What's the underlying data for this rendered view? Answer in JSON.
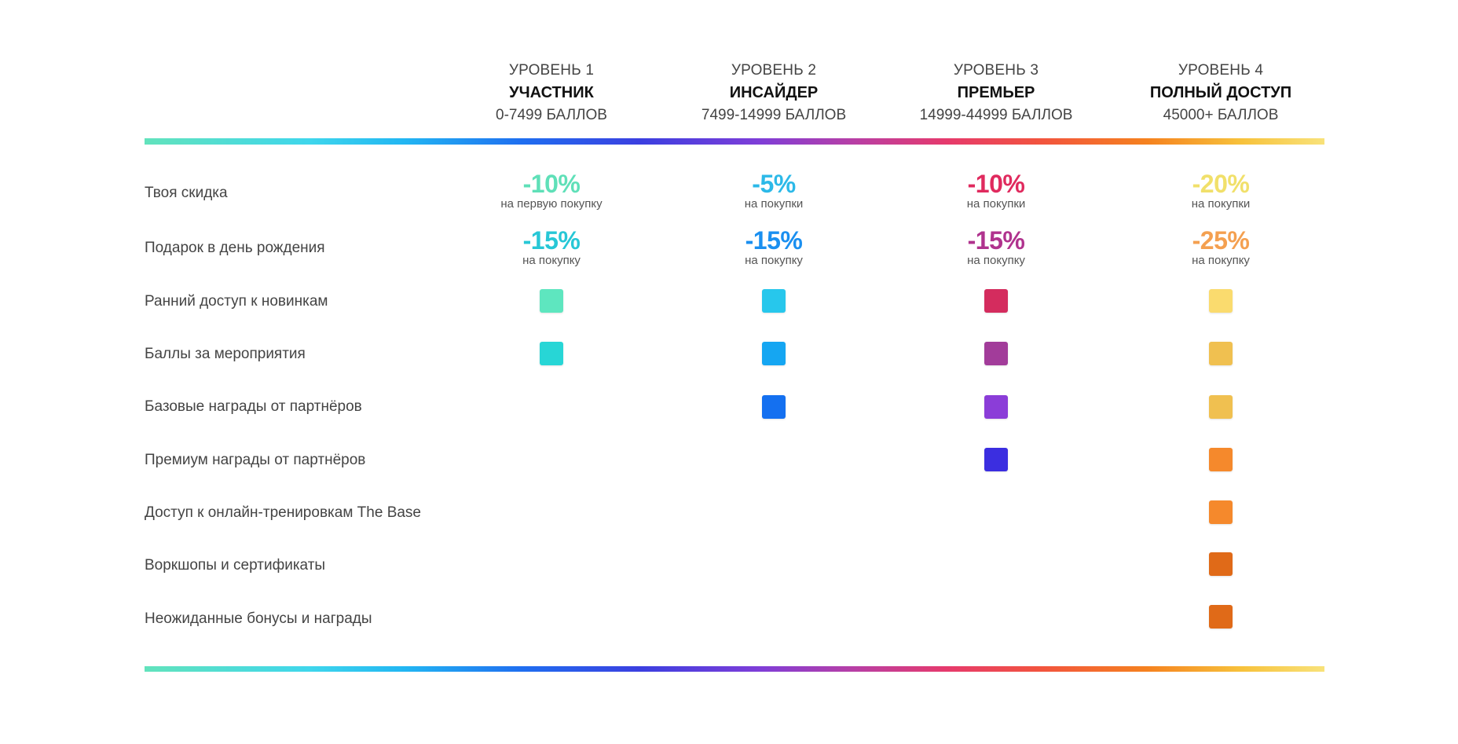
{
  "tiers": [
    {
      "level": "УРОВЕНЬ 1",
      "name": "УЧАСТНИК",
      "range": "0-7499 БАЛЛОВ"
    },
    {
      "level": "УРОВЕНЬ 2",
      "name": "ИНСАЙДЕР",
      "range": "7499-14999 БАЛЛОВ"
    },
    {
      "level": "УРОВЕНЬ 3",
      "name": "ПРЕМЬЕР",
      "range": "14999-44999 БАЛЛОВ"
    },
    {
      "level": "УРОВЕНЬ 4",
      "name": "ПОЛНЫЙ ДОСТУП",
      "range": "45000+ БАЛЛОВ"
    }
  ],
  "rows": [
    {
      "label": "Твоя скидка"
    },
    {
      "label": "Подарок в день рождения"
    },
    {
      "label": "Ранний доступ к новинкам"
    },
    {
      "label": "Баллы за мероприятия"
    },
    {
      "label": "Базовые награды от партнёров"
    },
    {
      "label": "Премиум награды от партнёров"
    },
    {
      "label": "Доступ к онлайн-тренировкам The Base"
    },
    {
      "label": "Воркшопы и сертификаты"
    },
    {
      "label": "Неожиданные бонусы и награды"
    }
  ],
  "discount": [
    {
      "value": "-10%",
      "note": "на первую покупку",
      "color": "#5fe0b8"
    },
    {
      "value": "-5%",
      "note": "на покупки",
      "color": "#2cb9e8"
    },
    {
      "value": "-10%",
      "note": "на покупки",
      "color": "#e02a5e"
    },
    {
      "value": "-20%",
      "note": "на покупки",
      "color": "#f1e06a"
    }
  ],
  "birthday": [
    {
      "value": "-15%",
      "note": "на покупку",
      "color": "#27c7d6"
    },
    {
      "value": "-15%",
      "note": "на покупку",
      "color": "#1a8ff0"
    },
    {
      "value": "-15%",
      "note": "на покупку",
      "color": "#b0338e"
    },
    {
      "value": "-25%",
      "note": "на покупку",
      "color": "#f4a050"
    }
  ],
  "squares": [
    {
      "row": 2,
      "tier": 0,
      "color": "#5ee6bf"
    },
    {
      "row": 2,
      "tier": 1,
      "color": "#27c7ec"
    },
    {
      "row": 2,
      "tier": 2,
      "color": "#d42c5e"
    },
    {
      "row": 2,
      "tier": 3,
      "color": "#fadb6e"
    },
    {
      "row": 3,
      "tier": 0,
      "color": "#27d6d6"
    },
    {
      "row": 3,
      "tier": 1,
      "color": "#15a6f2"
    },
    {
      "row": 3,
      "tier": 2,
      "color": "#a23c9a"
    },
    {
      "row": 3,
      "tier": 3,
      "color": "#f0c050"
    },
    {
      "row": 4,
      "tier": 1,
      "color": "#1470f0"
    },
    {
      "row": 4,
      "tier": 2,
      "color": "#8b3dd8"
    },
    {
      "row": 4,
      "tier": 3,
      "color": "#f0c050"
    },
    {
      "row": 5,
      "tier": 2,
      "color": "#3b2ee0"
    },
    {
      "row": 5,
      "tier": 3,
      "color": "#f5892c"
    },
    {
      "row": 6,
      "tier": 3,
      "color": "#f5892c"
    },
    {
      "row": 7,
      "tier": 3,
      "color": "#e06a18"
    },
    {
      "row": 8,
      "tier": 3,
      "color": "#e06a18"
    }
  ]
}
